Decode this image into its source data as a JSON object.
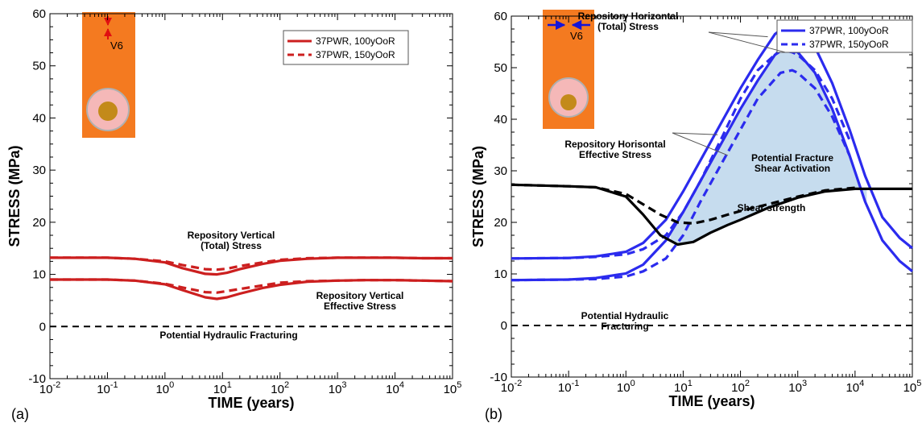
{
  "chart_data": [
    {
      "type": "line",
      "panel_label": "(a)",
      "xlabel": "TIME (years)",
      "ylabel": "STRESS (MPa)",
      "xscale": "log",
      "xlim": [
        0.01,
        100000
      ],
      "ylim": [
        -10,
        60
      ],
      "x_tick_labels": [
        "10-2",
        "10-1",
        "100",
        "101",
        "102",
        "103",
        "104",
        "105"
      ],
      "y_tick_labels": [
        "-10",
        "0",
        "10",
        "20",
        "30",
        "40",
        "50",
        "60"
      ],
      "legend": {
        "location": "top-right",
        "entries": [
          {
            "label": "37PWR, 100yOoR",
            "style": "solid",
            "color": "#cc1f1f"
          },
          {
            "label": "37PWR, 150yOoR",
            "style": "dashed",
            "color": "#cc1f1f"
          }
        ]
      },
      "inset_label": "V6",
      "inset_colors": {
        "rock": "#f47a20",
        "buffer": "#f5b8b8",
        "buffer_edge": "#b0b0b0",
        "canister": "#c38a1a",
        "arrow": "#e01010"
      },
      "series": [
        {
          "color": "#cc1f1f",
          "style": "solid",
          "x": [
            0.01,
            0.1,
            0.3,
            1,
            2,
            5,
            8,
            12,
            20,
            50,
            100,
            300,
            1000,
            3000,
            10000,
            30000,
            100000
          ],
          "y": [
            13.2,
            13.2,
            13,
            12.3,
            11.2,
            10.1,
            10,
            10.3,
            11,
            12,
            12.6,
            13,
            13.2,
            13.2,
            13.2,
            13.1,
            13.1
          ]
        },
        {
          "color": "#cc1f1f",
          "style": "dashed",
          "x": [
            0.01,
            0.1,
            0.3,
            1,
            2,
            5,
            8,
            12,
            20,
            50,
            100,
            300,
            1000,
            3000,
            10000,
            30000,
            100000
          ],
          "y": [
            13.2,
            13.2,
            13,
            12.5,
            11.8,
            11,
            10.9,
            11.1,
            11.6,
            12.3,
            12.8,
            13.1,
            13.2,
            13.2,
            13.2,
            13.1,
            13.1
          ]
        },
        {
          "color": "#cc1f1f",
          "style": "solid",
          "x": [
            0.01,
            0.1,
            0.3,
            1,
            2,
            5,
            8,
            12,
            20,
            50,
            100,
            300,
            1000,
            3000,
            10000,
            30000,
            100000
          ],
          "y": [
            9,
            9,
            8.8,
            8.1,
            7,
            5.6,
            5.3,
            5.6,
            6.3,
            7.4,
            8,
            8.6,
            8.8,
            8.9,
            8.9,
            8.8,
            8.7
          ]
        },
        {
          "color": "#cc1f1f",
          "style": "dashed",
          "x": [
            0.01,
            0.1,
            0.3,
            1,
            2,
            5,
            8,
            12,
            20,
            50,
            100,
            300,
            1000,
            3000,
            10000,
            30000,
            100000
          ],
          "y": [
            9,
            9,
            8.8,
            8.2,
            7.5,
            6.6,
            6.5,
            6.8,
            7.2,
            7.9,
            8.4,
            8.7,
            8.8,
            8.9,
            8.9,
            8.8,
            8.7
          ]
        },
        {
          "color": "#000000",
          "style": "dashed",
          "x": [
            0.01,
            100000
          ],
          "y": [
            0,
            0
          ]
        }
      ],
      "annotations": [
        {
          "lines": [
            "Repository Vertical",
            "(Total) Stress"
          ],
          "x": 30,
          "y": 20
        },
        {
          "lines": [
            "Repository Vertical",
            "Effective Stress"
          ],
          "x": 2500,
          "y": 6
        },
        {
          "lines": [
            "Potential  Hydraulic Fracturing"
          ],
          "x": 30,
          "y": -2.8
        }
      ]
    },
    {
      "type": "line",
      "panel_label": "(b)",
      "xlabel": "TIME (years)",
      "ylabel": "STRESS (MPa)",
      "xscale": "log",
      "xlim": [
        0.01,
        100000
      ],
      "ylim": [
        -10,
        60
      ],
      "x_tick_labels": [
        "10-2",
        "10-1",
        "100",
        "101",
        "102",
        "103",
        "104",
        "105"
      ],
      "y_tick_labels": [
        "-10",
        "0",
        "10",
        "20",
        "30",
        "40",
        "50",
        "60"
      ],
      "legend": {
        "location": "top-right",
        "entries": [
          {
            "label": "37PWR, 100yOoR",
            "style": "solid",
            "color": "#2b2bee"
          },
          {
            "label": "37PWR, 150yOoR",
            "style": "dashed",
            "color": "#2b2bee"
          }
        ]
      },
      "inset_label": "V6",
      "inset_colors": {
        "rock": "#f47a20",
        "buffer": "#f5b8b8",
        "buffer_edge": "#b0b0b0",
        "canister": "#c38a1a",
        "arrow": "#1515d8"
      },
      "shaded_region_color": "#c6dcee",
      "series": [
        {
          "color": "#2b2bee",
          "style": "solid",
          "x": [
            0.01,
            0.1,
            0.3,
            1,
            2,
            5,
            10,
            20,
            50,
            100,
            200,
            400,
            600,
            1000,
            2000,
            4000,
            8000,
            15000,
            30000,
            60000,
            100000
          ],
          "y": [
            13,
            13.1,
            13.4,
            14.3,
            16,
            20.5,
            26,
            32,
            40,
            46,
            51.5,
            56.5,
            58,
            57.5,
            54,
            47,
            38,
            29,
            21,
            17,
            15
          ]
        },
        {
          "color": "#2b2bee",
          "style": "solid",
          "x": [
            0.01,
            0.1,
            0.3,
            1,
            2,
            5,
            10,
            20,
            50,
            100,
            200,
            400,
            600,
            1000,
            2000,
            4000,
            8000,
            15000,
            30000,
            60000,
            100000
          ],
          "y": [
            8.8,
            8.9,
            9.2,
            10.1,
            11.8,
            16.5,
            22,
            28,
            36,
            42,
            47.5,
            52.5,
            53.8,
            53,
            49,
            42,
            33,
            24,
            16.5,
            12.5,
            10.5
          ]
        },
        {
          "color": "#2b2bee",
          "style": "dashed",
          "x": [
            0.01,
            0.1,
            0.3,
            1,
            2,
            5,
            10,
            20,
            50,
            100,
            200,
            500,
            800,
            1000,
            2000,
            4000,
            8000
          ],
          "y": [
            13,
            13.1,
            13.3,
            13.8,
            14.8,
            17.5,
            22,
            28,
            37,
            44,
            49.5,
            53.5,
            53,
            52.5,
            49.5,
            44,
            36
          ]
        },
        {
          "color": "#2b2bee",
          "style": "dashed",
          "x": [
            0.01,
            0.1,
            0.3,
            1,
            2,
            5,
            10,
            20,
            50,
            100,
            200,
            500,
            800,
            1000,
            2000,
            4000,
            8000
          ],
          "y": [
            8.8,
            8.9,
            9,
            9.5,
            10.5,
            13,
            17.5,
            24,
            32,
            38,
            44,
            49,
            49.5,
            49,
            46,
            40.5,
            33
          ]
        },
        {
          "color": "#000000",
          "style": "solid",
          "x": [
            0.01,
            0.1,
            0.3,
            1,
            2,
            4,
            8,
            15,
            30,
            60,
            100,
            300,
            1000,
            3000,
            10000,
            30000,
            100000
          ],
          "y": [
            27.3,
            27,
            26.8,
            25,
            21.5,
            17.5,
            15.7,
            16.2,
            18,
            19.5,
            20.5,
            22.8,
            24.8,
            26,
            26.5,
            26.5,
            26.5
          ]
        },
        {
          "color": "#000000",
          "style": "dashed",
          "x": [
            0.01,
            0.1,
            0.3,
            1,
            2,
            4,
            8,
            15,
            30,
            60,
            100,
            300,
            1000,
            3000,
            10000
          ],
          "y": [
            27.3,
            27,
            26.8,
            25.5,
            23.5,
            21.5,
            20,
            19.8,
            20.5,
            21.5,
            22.2,
            23.5,
            25,
            26.2,
            26.7
          ]
        },
        {
          "color": "#000000",
          "style": "dashed",
          "x": [
            0.01,
            100000
          ],
          "y": [
            0,
            0
          ]
        }
      ],
      "annotations": [
        {
          "lines": [
            "Repository Horizontal",
            "(Total) Stress"
          ],
          "x": 100,
          "y": 59.2
        },
        {
          "lines": [
            "Repository Horisontal",
            "Effective Stress"
          ],
          "x": 0.1,
          "y": 32.6
        },
        {
          "lines": [
            "Potential Fracture",
            "Shear Activation"
          ],
          "x": 550,
          "y": 29.8
        },
        {
          "lines": [
            "Shear strength"
          ],
          "x": 300,
          "y": 18.2
        },
        {
          "lines": [
            "Potential Hydraulic",
            "Fracturing"
          ],
          "x": 0.05,
          "y": -4
        }
      ]
    }
  ]
}
